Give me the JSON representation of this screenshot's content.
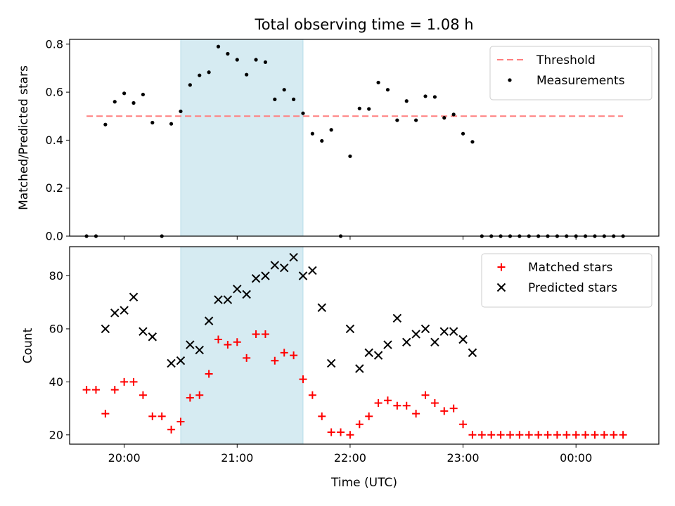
{
  "chart_data": [
    {
      "type": "scatter",
      "title": "Total observing time = 1.08 h",
      "xlabel": "",
      "ylabel": "Matched/Predicted stars",
      "ylim": [
        0,
        0.82
      ],
      "yticks": [
        0.0,
        0.2,
        0.4,
        0.6,
        0.8
      ],
      "ytick_labels": [
        "0.0",
        "0.2",
        "0.4",
        "0.6",
        "0.8"
      ],
      "xlim": [
        "19:31",
        "00:44"
      ],
      "xticks": [
        "20:00",
        "21:00",
        "22:00",
        "23:00",
        "00:00"
      ],
      "highlight_span": {
        "start": "20:30",
        "end": "21:35",
        "color": "#add8e6"
      },
      "grid": false,
      "legend_position": "top-right",
      "series": [
        {
          "name": "Threshold",
          "style": "dashed-line",
          "color": "#ff7f7f",
          "x": [
            "19:40",
            "00:25"
          ],
          "y": [
            0.5,
            0.5
          ]
        },
        {
          "name": "Measurements",
          "style": "dot",
          "color": "#000000",
          "x": [
            "19:40",
            "19:45",
            "19:50",
            "19:55",
            "20:00",
            "20:05",
            "20:10",
            "20:15",
            "20:20",
            "20:25",
            "20:30",
            "20:35",
            "20:40",
            "20:45",
            "20:50",
            "20:55",
            "21:00",
            "21:05",
            "21:10",
            "21:15",
            "21:20",
            "21:25",
            "21:30",
            "21:35",
            "21:40",
            "21:45",
            "21:50",
            "21:55",
            "22:00",
            "22:05",
            "22:10",
            "22:15",
            "22:20",
            "22:25",
            "22:30",
            "22:35",
            "22:40",
            "22:45",
            "22:50",
            "22:55",
            "23:00",
            "23:05",
            "23:10",
            "23:15",
            "23:20",
            "23:25",
            "23:30",
            "23:35",
            "23:40",
            "23:45",
            "23:50",
            "23:55",
            "00:00",
            "00:05",
            "00:10",
            "00:15",
            "00:20",
            "00:25"
          ],
          "y": [
            0.0,
            0.0,
            0.465,
            0.56,
            0.595,
            0.555,
            0.59,
            0.473,
            0.0,
            0.468,
            0.52,
            0.63,
            0.67,
            0.683,
            0.79,
            0.76,
            0.735,
            0.673,
            0.735,
            0.725,
            0.57,
            0.61,
            0.57,
            0.512,
            0.427,
            0.397,
            0.443,
            0.0,
            0.333,
            0.532,
            0.53,
            0.64,
            0.61,
            0.483,
            0.563,
            0.483,
            0.583,
            0.58,
            0.493,
            0.507,
            0.427,
            0.393,
            0.0,
            0.0,
            0.0,
            0.0,
            0.0,
            0.0,
            0.0,
            0.0,
            0.0,
            0.0,
            0.0,
            0.0,
            0.0,
            0.0,
            0.0,
            0.0
          ]
        }
      ]
    },
    {
      "type": "scatter",
      "title": "",
      "xlabel": "Time (UTC)",
      "ylabel": "Count",
      "ylim": [
        16.5,
        91
      ],
      "yticks": [
        20,
        40,
        60,
        80
      ],
      "ytick_labels": [
        "20",
        "40",
        "60",
        "80"
      ],
      "xlim": [
        "19:31",
        "00:44"
      ],
      "xticks": [
        "20:00",
        "21:00",
        "22:00",
        "23:00",
        "00:00"
      ],
      "xtick_labels": [
        "20:00",
        "21:00",
        "22:00",
        "23:00",
        "00:00"
      ],
      "highlight_span": {
        "start": "20:30",
        "end": "21:35",
        "color": "#add8e6"
      },
      "grid": false,
      "legend_position": "top-right",
      "series": [
        {
          "name": "Matched stars",
          "marker": "plus",
          "color": "#ff0000",
          "x": [
            "19:40",
            "19:45",
            "19:50",
            "19:55",
            "20:00",
            "20:05",
            "20:10",
            "20:15",
            "20:20",
            "20:25",
            "20:30",
            "20:35",
            "20:40",
            "20:45",
            "20:50",
            "20:55",
            "21:00",
            "21:05",
            "21:10",
            "21:15",
            "21:20",
            "21:25",
            "21:30",
            "21:35",
            "21:40",
            "21:45",
            "21:50",
            "21:55",
            "22:00",
            "22:05",
            "22:10",
            "22:15",
            "22:20",
            "22:25",
            "22:30",
            "22:35",
            "22:40",
            "22:45",
            "22:50",
            "22:55",
            "23:00",
            "23:05",
            "23:10",
            "23:15",
            "23:20",
            "23:25",
            "23:30",
            "23:35",
            "23:40",
            "23:45",
            "23:50",
            "23:55",
            "00:00",
            "00:05",
            "00:10",
            "00:15",
            "00:20",
            "00:25"
          ],
          "y": [
            37,
            37,
            28,
            37,
            40,
            40,
            35,
            27,
            27,
            22,
            25,
            34,
            35,
            43,
            56,
            54,
            55,
            49,
            58,
            58,
            48,
            51,
            50,
            41,
            35,
            27,
            21,
            21,
            20,
            24,
            27,
            32,
            33,
            31,
            31,
            28,
            35,
            32,
            29,
            30,
            24,
            20,
            20,
            20,
            20,
            20,
            20,
            20,
            20,
            20,
            20,
            20,
            20,
            20,
            20,
            20,
            20,
            20
          ]
        },
        {
          "name": "Predicted stars",
          "marker": "x",
          "color": "#000000",
          "x": [
            "19:50",
            "19:55",
            "20:00",
            "20:05",
            "20:10",
            "20:15",
            "20:25",
            "20:30",
            "20:35",
            "20:40",
            "20:45",
            "20:50",
            "20:55",
            "21:00",
            "21:05",
            "21:10",
            "21:15",
            "21:20",
            "21:25",
            "21:30",
            "21:35",
            "21:40",
            "21:45",
            "21:50",
            "22:00",
            "22:05",
            "22:10",
            "22:15",
            "22:20",
            "22:25",
            "22:30",
            "22:35",
            "22:40",
            "22:45",
            "22:50",
            "22:55",
            "23:00",
            "23:05"
          ],
          "y": [
            60,
            66,
            67,
            72,
            59,
            57,
            47,
            48,
            54,
            52,
            63,
            71,
            71,
            75,
            73,
            79,
            80,
            84,
            83,
            87,
            80,
            82,
            68,
            47,
            60,
            45,
            51,
            50,
            54,
            64,
            55,
            58,
            60,
            55,
            59,
            59,
            56,
            51
          ]
        }
      ]
    }
  ]
}
